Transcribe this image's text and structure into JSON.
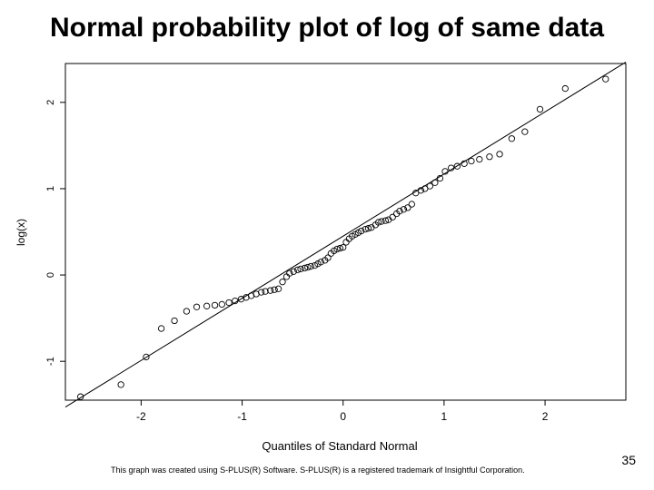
{
  "slide": {
    "title": "Normal probability plot of log of same data",
    "slide_number": "35",
    "credit": "This graph was created using S-PLUS(R) Software. S-PLUS(R) is a registered trademark of Insightful Corporation."
  },
  "chart_data": {
    "type": "scatter",
    "title": "Normal probability plot of log of same data",
    "xlabel": "Quantiles of Standard Normal",
    "ylabel": "log(x)",
    "xlim": [
      -2.75,
      2.8
    ],
    "ylim": [
      -1.45,
      2.45
    ],
    "xticks": [
      -2,
      -1,
      0,
      1,
      2
    ],
    "yticks": [
      -1,
      0,
      1,
      2
    ],
    "xtick_labels": [
      "-2",
      "-1",
      "0",
      "1",
      "2"
    ],
    "ytick_labels": [
      "-1",
      "0",
      "1",
      "2"
    ],
    "reference_line": {
      "intercept": 0.45,
      "slope": 0.72
    },
    "points": [
      [
        -2.6,
        -1.41
      ],
      [
        -2.2,
        -1.27
      ],
      [
        -1.95,
        -0.95
      ],
      [
        -1.8,
        -0.62
      ],
      [
        -1.67,
        -0.53
      ],
      [
        -1.55,
        -0.42
      ],
      [
        -1.45,
        -0.37
      ],
      [
        -1.35,
        -0.36
      ],
      [
        -1.27,
        -0.35
      ],
      [
        -1.2,
        -0.34
      ],
      [
        -1.13,
        -0.32
      ],
      [
        -1.07,
        -0.3
      ],
      [
        -1.01,
        -0.28
      ],
      [
        -0.96,
        -0.26
      ],
      [
        -0.91,
        -0.24
      ],
      [
        -0.86,
        -0.22
      ],
      [
        -0.81,
        -0.2
      ],
      [
        -0.77,
        -0.19
      ],
      [
        -0.72,
        -0.18
      ],
      [
        -0.68,
        -0.17
      ],
      [
        -0.64,
        -0.16
      ],
      [
        -0.6,
        -0.08
      ],
      [
        -0.56,
        -0.02
      ],
      [
        -0.53,
        0.02
      ],
      [
        -0.49,
        0.04
      ],
      [
        -0.45,
        0.06
      ],
      [
        -0.42,
        0.07
      ],
      [
        -0.38,
        0.08
      ],
      [
        -0.35,
        0.09
      ],
      [
        -0.32,
        0.1
      ],
      [
        -0.28,
        0.11
      ],
      [
        -0.25,
        0.13
      ],
      [
        -0.22,
        0.15
      ],
      [
        -0.18,
        0.17
      ],
      [
        -0.15,
        0.2
      ],
      [
        -0.12,
        0.25
      ],
      [
        -0.09,
        0.28
      ],
      [
        -0.06,
        0.3
      ],
      [
        -0.03,
        0.31
      ],
      [
        0.0,
        0.32
      ],
      [
        0.03,
        0.38
      ],
      [
        0.06,
        0.42
      ],
      [
        0.09,
        0.45
      ],
      [
        0.12,
        0.47
      ],
      [
        0.15,
        0.49
      ],
      [
        0.18,
        0.51
      ],
      [
        0.22,
        0.53
      ],
      [
        0.25,
        0.54
      ],
      [
        0.28,
        0.55
      ],
      [
        0.32,
        0.58
      ],
      [
        0.35,
        0.61
      ],
      [
        0.38,
        0.62
      ],
      [
        0.42,
        0.63
      ],
      [
        0.45,
        0.64
      ],
      [
        0.49,
        0.67
      ],
      [
        0.53,
        0.71
      ],
      [
        0.56,
        0.74
      ],
      [
        0.6,
        0.76
      ],
      [
        0.64,
        0.78
      ],
      [
        0.68,
        0.82
      ],
      [
        0.72,
        0.95
      ],
      [
        0.77,
        0.98
      ],
      [
        0.81,
        1.0
      ],
      [
        0.86,
        1.03
      ],
      [
        0.91,
        1.07
      ],
      [
        0.96,
        1.12
      ],
      [
        1.01,
        1.2
      ],
      [
        1.07,
        1.24
      ],
      [
        1.13,
        1.26
      ],
      [
        1.2,
        1.29
      ],
      [
        1.27,
        1.32
      ],
      [
        1.35,
        1.34
      ],
      [
        1.45,
        1.37
      ],
      [
        1.55,
        1.4
      ],
      [
        1.67,
        1.58
      ],
      [
        1.8,
        1.66
      ],
      [
        1.95,
        1.92
      ],
      [
        2.2,
        2.16
      ],
      [
        2.6,
        2.27
      ]
    ],
    "grid": false,
    "legend": "none"
  }
}
